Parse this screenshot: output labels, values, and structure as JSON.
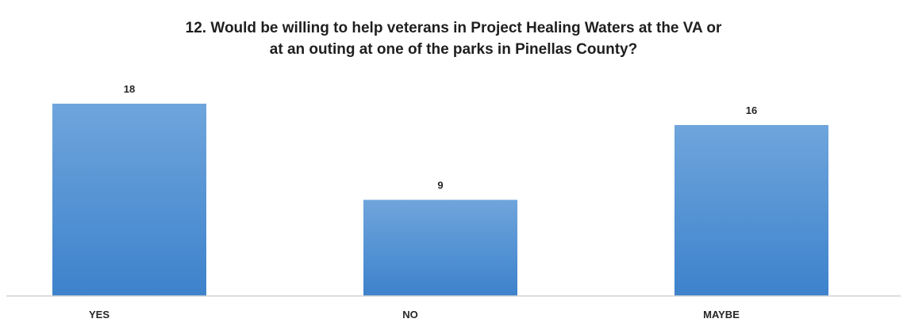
{
  "chart_data": {
    "type": "bar",
    "title": "12. Would be willing to help veterans in Project Healing Waters at the VA or at an outing at one of the parks in Pinellas County?",
    "title_lines": [
      "12. Would be willing to help veterans in Project Healing Waters at the VA or",
      "at an outing at one of the parks in Pinellas County?"
    ],
    "categories": [
      "YES",
      "NO",
      "MAYBE"
    ],
    "values": [
      18,
      9,
      16
    ],
    "xlabel": "",
    "ylabel": "",
    "ylim": [
      0,
      19
    ],
    "grid": false,
    "legend": "none",
    "bar_color_top": "#6fa5dc",
    "bar_color_bottom": "#3d82cc",
    "axis_color": "#d0d0d0"
  }
}
